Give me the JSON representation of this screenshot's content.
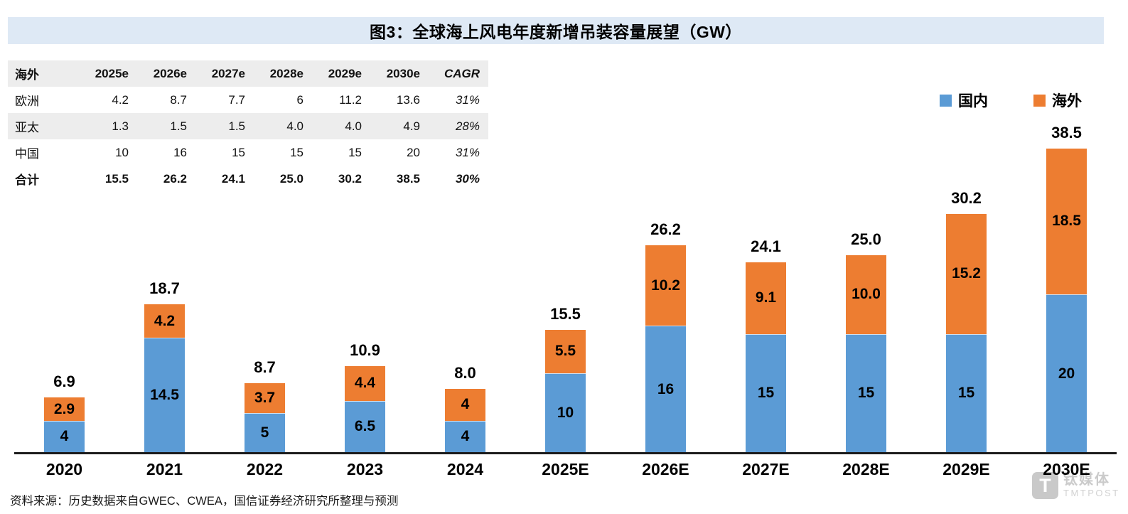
{
  "title": "图3：全球海上风电年度新增吊装容量展望（GW）",
  "table": {
    "header": [
      "海外",
      "2025e",
      "2026e",
      "2027e",
      "2028e",
      "2029e",
      "2030e",
      "CAGR"
    ],
    "rows": [
      {
        "label": "欧洲",
        "values": [
          "4.2",
          "8.7",
          "7.7",
          "6",
          "11.2",
          "13.6"
        ],
        "cagr": "31%",
        "bold": false,
        "shaded": false
      },
      {
        "label": "亚太",
        "values": [
          "1.3",
          "1.5",
          "1.5",
          "4.0",
          "4.0",
          "4.9"
        ],
        "cagr": "28%",
        "bold": false,
        "shaded": true
      },
      {
        "label": "中国",
        "values": [
          "10",
          "16",
          "15",
          "15",
          "15",
          "20"
        ],
        "cagr": "31%",
        "bold": false,
        "shaded": false
      },
      {
        "label": "合计",
        "values": [
          "15.5",
          "26.2",
          "24.1",
          "25.0",
          "30.2",
          "38.5"
        ],
        "cagr": "30%",
        "bold": true,
        "shaded": false
      }
    ]
  },
  "legend": [
    {
      "label": "国内",
      "color": "#5B9BD5"
    },
    {
      "label": "海外",
      "color": "#ED7D31"
    }
  ],
  "chart_data": {
    "type": "bar",
    "stacked": true,
    "title": "图3：全球海上风电年度新增吊装容量展望（GW）",
    "categories": [
      "2020",
      "2021",
      "2022",
      "2023",
      "2024",
      "2025E",
      "2026E",
      "2027E",
      "2028E",
      "2029E",
      "2030E"
    ],
    "series": [
      {
        "name": "国内",
        "color": "#5B9BD5",
        "values": [
          4,
          14.5,
          5,
          6.5,
          4,
          10,
          16,
          15,
          15,
          15,
          20
        ],
        "labels": [
          "4",
          "14.5",
          "5",
          "6.5",
          "4",
          "10",
          "16",
          "15",
          "15",
          "15",
          "20"
        ]
      },
      {
        "name": "海外",
        "color": "#ED7D31",
        "values": [
          2.9,
          4.2,
          3.7,
          4.4,
          4,
          5.5,
          10.2,
          9.1,
          10.0,
          15.2,
          18.5
        ],
        "labels": [
          "2.9",
          "4.2",
          "3.7",
          "4.4",
          "4",
          "5.5",
          "10.2",
          "9.1",
          "10.0",
          "15.2",
          "18.5"
        ]
      }
    ],
    "totals": [
      "6.9",
      "18.7",
      "8.7",
      "10.9",
      "8.0",
      "15.5",
      "26.2",
      "24.1",
      "25.0",
      "30.2",
      "38.5"
    ],
    "ylim": [
      0,
      40
    ],
    "grid": false,
    "legend_position": "top-right",
    "unit": "GW"
  },
  "footer": "资料来源：历史数据来自GWEC、CWEA，国信证券经济研究所整理与预测",
  "watermark": {
    "icon_letter": "T",
    "cn": "钛媒体",
    "en": "TMTPOST"
  },
  "colors": {
    "domestic": "#5B9BD5",
    "overseas": "#ED7D31",
    "title_bg": "#DEE9F5",
    "row_alt": "#EDEDED"
  }
}
